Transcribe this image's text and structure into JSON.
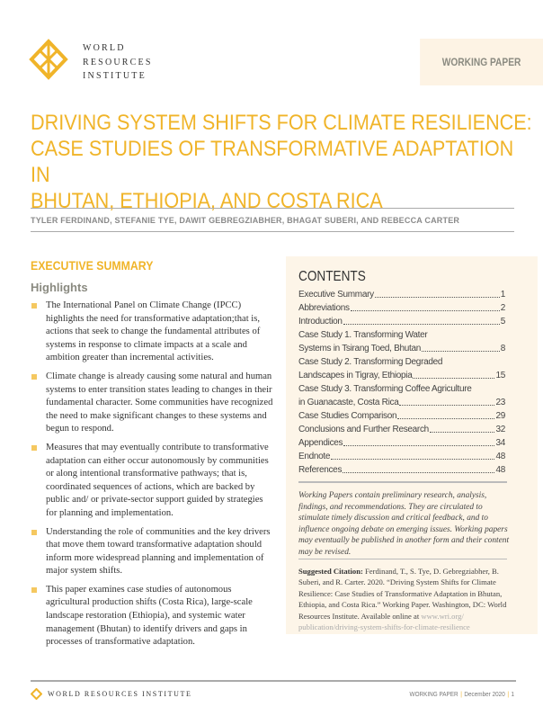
{
  "header": {
    "org_name_lines": [
      "WORLD",
      "RESOURCES",
      "INSTITUTE"
    ],
    "badge": "WORKING PAPER"
  },
  "title_lines": [
    "DRIVING SYSTEM SHIFTS FOR CLIMATE RESILIENCE:",
    "CASE STUDIES OF TRANSFORMATIVE ADAPTATION IN",
    "BHUTAN, ETHIOPIA, AND COSTA RICA"
  ],
  "authors": "TYLER FERDINAND, STEFANIE TYE, DAWIT GEBREGZIABHER, BHAGAT SUBERI, AND REBECCA CARTER",
  "summary": {
    "heading": "EXECUTIVE SUMMARY",
    "subheading": "Highlights",
    "bullets": [
      "The International Panel on Climate Change (IPCC) highlights the need for transformative adaptation;that is, actions that seek to change the fundamental attributes of systems in response to climate impacts at a scale and ambition greater than incremental activities.",
      "Climate change is already causing some natural and human systems to enter transition states leading to changes in their fundamental character. Some communities have recognized the need to make significant changes to these systems and begun to respond.",
      "Measures that may eventually contribute to transformative adaptation can either occur autonomously by communities or along intentional transformative pathways; that is, coordinated sequences of actions, which are backed by public and/ or private-sector support guided by strategies for planning and implementation.",
      "Understanding the role of communities and the key drivers that move them toward transformative adaptation should inform more widespread planning and implementation of major system shifts.",
      "This paper examines case studies of autonomous agricultural production shifts (Costa Rica), large-scale landscape restoration (Ethiopia), and systemic water management (Bhutan) to identify drivers and gaps in processes of transformative adaptation."
    ]
  },
  "contents": {
    "heading": "CONTENTS",
    "items": [
      {
        "pre": "",
        "label": "Executive Summary",
        "page": "1"
      },
      {
        "pre": "",
        "label": "Abbreviations",
        "page": "2"
      },
      {
        "pre": "",
        "label": "Introduction",
        "page": "5"
      },
      {
        "pre": "Case Study 1. Transforming Water",
        "label": "Systems in Tsirang Toed, Bhutan",
        "page": "8"
      },
      {
        "pre": "Case Study 2. Transforming Degraded",
        "label": "Landscapes in Tigray, Ethiopia",
        "page": "15"
      },
      {
        "pre": "Case Study 3. Transforming Coffee Agriculture",
        "label": "in Guanacaste, Costa Rica",
        "page": "23"
      },
      {
        "pre": "",
        "label": "Case Studies Comparison",
        "page": "29"
      },
      {
        "pre": "",
        "label": "Conclusions and Further Research",
        "page": "32"
      },
      {
        "pre": "",
        "label": "Appendices",
        "page": "34"
      },
      {
        "pre": "",
        "label": "Endnote",
        "page": "48"
      },
      {
        "pre": "",
        "label": "References",
        "page": "48"
      }
    ],
    "note": "Working Papers contain preliminary research, analysis, findings, and recommendations. They are circulated to stimulate timely discussion and critical feedback, and to influence ongoing debate on emerging issues. Working papers may eventually be published in another form and their content may be revised.",
    "citation_label": "Suggested Citation:",
    "citation_text": " Ferdinand, T., S. Tye, D. Gebregziabher, B. Suberi, and R. Carter. 2020. “Driving System Shifts for Climate Resilience: Case Studies of Transformative Adaptation in Bhutan, Ethiopia, and Costa Rica.” Working Paper. Washington, DC: World Resources Institute. Available online at ",
    "citation_url": "www.wri.org/ publication/driving-system-shifts-for-climate-resilience"
  },
  "footer": {
    "org": "WORLD RESOURCES INSTITUTE",
    "type": "WORKING PAPER",
    "date": "December 2020",
    "page": "1"
  },
  "colors": {
    "accent": "#f0b429",
    "box": "#fdf5e8"
  }
}
